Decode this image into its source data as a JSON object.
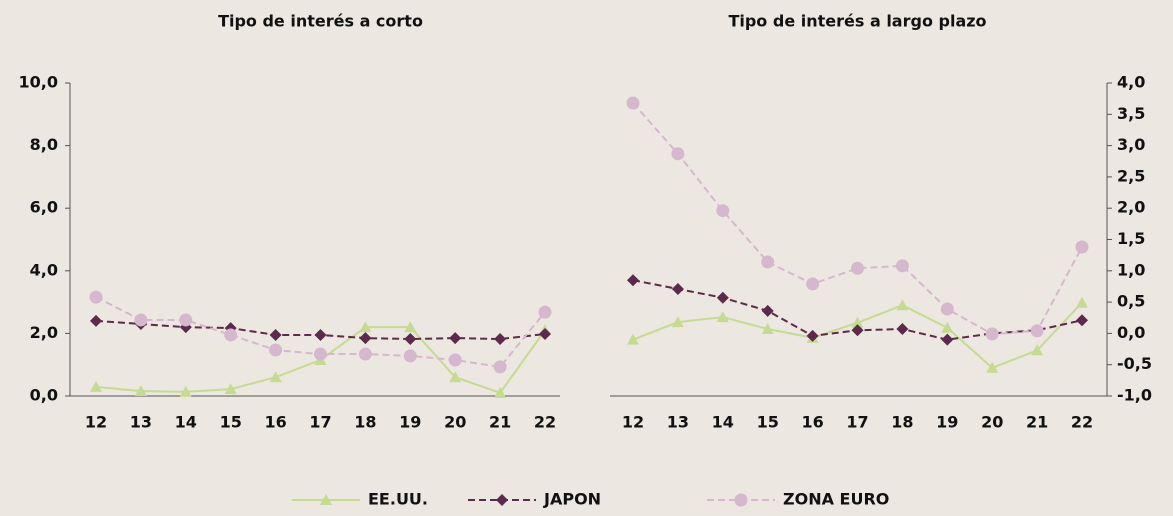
{
  "chart_data": [
    {
      "type": "line",
      "title": "Tipo de interés a corto",
      "categories": [
        "12",
        "13",
        "14",
        "15",
        "16",
        "17",
        "18",
        "19",
        "20",
        "21",
        "22"
      ],
      "ylim": [
        0,
        10
      ],
      "yticks": [
        {
          "value": 0,
          "label": "0,0"
        },
        {
          "value": 2,
          "label": "2,0"
        },
        {
          "value": 4,
          "label": "4,0"
        },
        {
          "value": 6,
          "label": "6,0"
        },
        {
          "value": 8,
          "label": "8,0"
        },
        {
          "value": 10,
          "label": "10,0"
        }
      ],
      "series": [
        {
          "name": "EE.UU.",
          "color": "#c5db94",
          "marker": "triangle",
          "dash": false,
          "values": [
            0.29,
            0.16,
            0.13,
            0.22,
            0.6,
            1.15,
            2.2,
            2.2,
            0.6,
            0.1,
            2.1
          ]
        },
        {
          "name": "JAPON",
          "color": "#5b2a4c",
          "marker": "diamond",
          "dash": true,
          "values": [
            2.4,
            2.3,
            2.2,
            2.17,
            1.95,
            1.95,
            1.85,
            1.82,
            1.85,
            1.82,
            1.98
          ]
        },
        {
          "name": "ZONA EURO",
          "color": "#d6b8ce",
          "marker": "circle",
          "dash": true,
          "values": [
            3.16,
            2.43,
            2.43,
            1.95,
            1.47,
            1.34,
            1.34,
            1.28,
            1.15,
            0.93,
            2.68
          ]
        }
      ]
    },
    {
      "type": "line",
      "title": "Tipo de interés a largo plazo",
      "categories": [
        "12",
        "13",
        "14",
        "15",
        "16",
        "17",
        "18",
        "19",
        "20",
        "21",
        "22"
      ],
      "y2lim": [
        -1,
        4
      ],
      "y2ticks": [
        {
          "value": -1,
          "label": "-1,0"
        },
        {
          "value": -0.5,
          "label": "-0,5"
        },
        {
          "value": 0,
          "label": "0,0"
        },
        {
          "value": 0.5,
          "label": "0,5"
        },
        {
          "value": 1,
          "label": "1,0"
        },
        {
          "value": 1.5,
          "label": "1,5"
        },
        {
          "value": 2,
          "label": "2,0"
        },
        {
          "value": 2.5,
          "label": "2,5"
        },
        {
          "value": 3,
          "label": "3,0"
        },
        {
          "value": 3.5,
          "label": "3,5"
        },
        {
          "value": 4,
          "label": "4,0"
        }
      ],
      "series": [
        {
          "axis": "y2",
          "color": "#c5db94",
          "marker": "triangle",
          "dash": false,
          "values": [
            -0.1,
            0.18,
            0.26,
            0.07,
            -0.07,
            0.17,
            0.45,
            0.09,
            -0.55,
            -0.27,
            0.49
          ]
        },
        {
          "axis": "y2",
          "color": "#5b2a4c",
          "marker": "diamond",
          "dash": true,
          "values": [
            0.85,
            0.71,
            0.57,
            0.36,
            -0.04,
            0.05,
            0.07,
            -0.1,
            0.0,
            0.05,
            0.21
          ]
        },
        {
          "axis": "y2",
          "color": "#d6b8ce",
          "marker": "circle",
          "dash": true,
          "values": [
            3.68,
            2.87,
            1.96,
            1.14,
            0.79,
            1.04,
            1.08,
            0.39,
            -0.01,
            0.04,
            1.38
          ]
        }
      ]
    }
  ]
}
